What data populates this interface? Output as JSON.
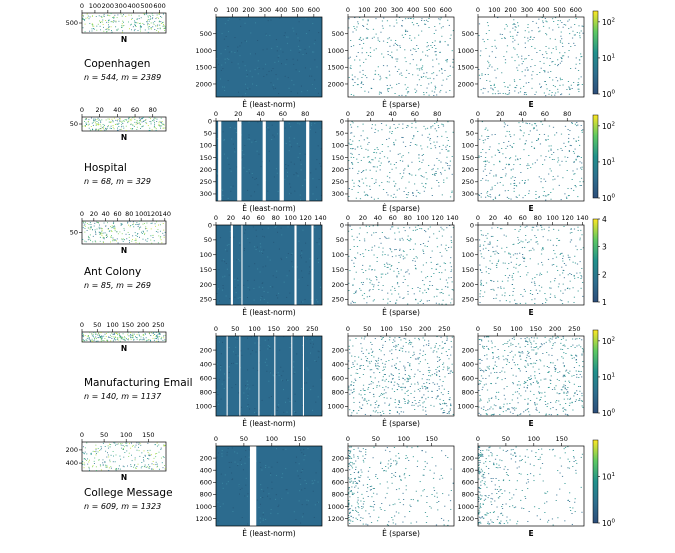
{
  "chart_data": {
    "type": "heatmap",
    "columns": [
      {
        "xlabel": "N"
      },
      {
        "xlabel": "Ê (least-norm)"
      },
      {
        "xlabel": "Ê (sparse)"
      },
      {
        "xlabel": "E"
      }
    ],
    "rows": [
      {
        "dataset": "Copenhagen",
        "stats": "n = 544, m = 2389",
        "x_ticks": [
          "0",
          "100",
          "200",
          "300",
          "400",
          "500",
          "600"
        ],
        "x_max": 650,
        "n_y_ticks": [
          "500"
        ],
        "e_y_ticks": [
          "500",
          "1000",
          "1500",
          "2000"
        ],
        "e_y_max": 2389,
        "colorbar": {
          "scale": "log",
          "ticks": [
            "10^0",
            "10^1",
            "10^2"
          ],
          "range": [
            1,
            200
          ]
        }
      },
      {
        "dataset": "Hospital",
        "stats": "n = 68, m = 329",
        "x_ticks": [
          "0",
          "20",
          "40",
          "60",
          "80"
        ],
        "x_max": 95,
        "n_y_ticks": [
          "50"
        ],
        "e_y_ticks": [
          "0",
          "50",
          "100",
          "150",
          "200",
          "250",
          "300"
        ],
        "e_y_max": 329,
        "colorbar": {
          "scale": "log",
          "ticks": [
            "10^0",
            "10^1",
            "10^2"
          ],
          "range": [
            1,
            200
          ]
        }
      },
      {
        "dataset": "Ant Colony",
        "stats": "n = 85, m = 269",
        "x_ticks": [
          "0",
          "20",
          "40",
          "60",
          "80",
          "100",
          "120",
          "140"
        ],
        "x_max": 142,
        "n_y_ticks": [
          "50"
        ],
        "e_y_ticks": [
          "0",
          "50",
          "100",
          "150",
          "200",
          "250"
        ],
        "e_y_max": 269,
        "colorbar": {
          "scale": "linear",
          "ticks": [
            "1",
            "2",
            "3",
            "4"
          ],
          "range": [
            1,
            4
          ]
        }
      },
      {
        "dataset": "Manufacturing Email",
        "stats": "n = 140, m = 1137",
        "x_ticks": [
          "0",
          "50",
          "100",
          "150",
          "200",
          "250"
        ],
        "x_max": 275,
        "n_y_ticks": [],
        "e_y_ticks": [
          "200",
          "400",
          "600",
          "800",
          "1000"
        ],
        "e_y_max": 1137,
        "colorbar": {
          "scale": "log",
          "ticks": [
            "10^0",
            "10^1",
            "10^2"
          ],
          "range": [
            1,
            200
          ]
        }
      },
      {
        "dataset": "College Message",
        "stats": "n = 609, m = 1323",
        "x_ticks": [
          "0",
          "50",
          "100",
          "150"
        ],
        "x_max": 190,
        "n_y_ticks": [
          "200",
          "400"
        ],
        "e_y_ticks": [
          "200",
          "400",
          "600",
          "800",
          "1000",
          "1200"
        ],
        "e_y_max": 1323,
        "colorbar": {
          "scale": "log",
          "ticks": [
            "10^0",
            "10^1"
          ],
          "range": [
            1,
            60
          ]
        }
      }
    ]
  },
  "colors": {
    "dense_fill": "#2c6b8e",
    "viridis": [
      "#440154",
      "#3b528b",
      "#21918c",
      "#5ec962",
      "#fde725"
    ]
  }
}
